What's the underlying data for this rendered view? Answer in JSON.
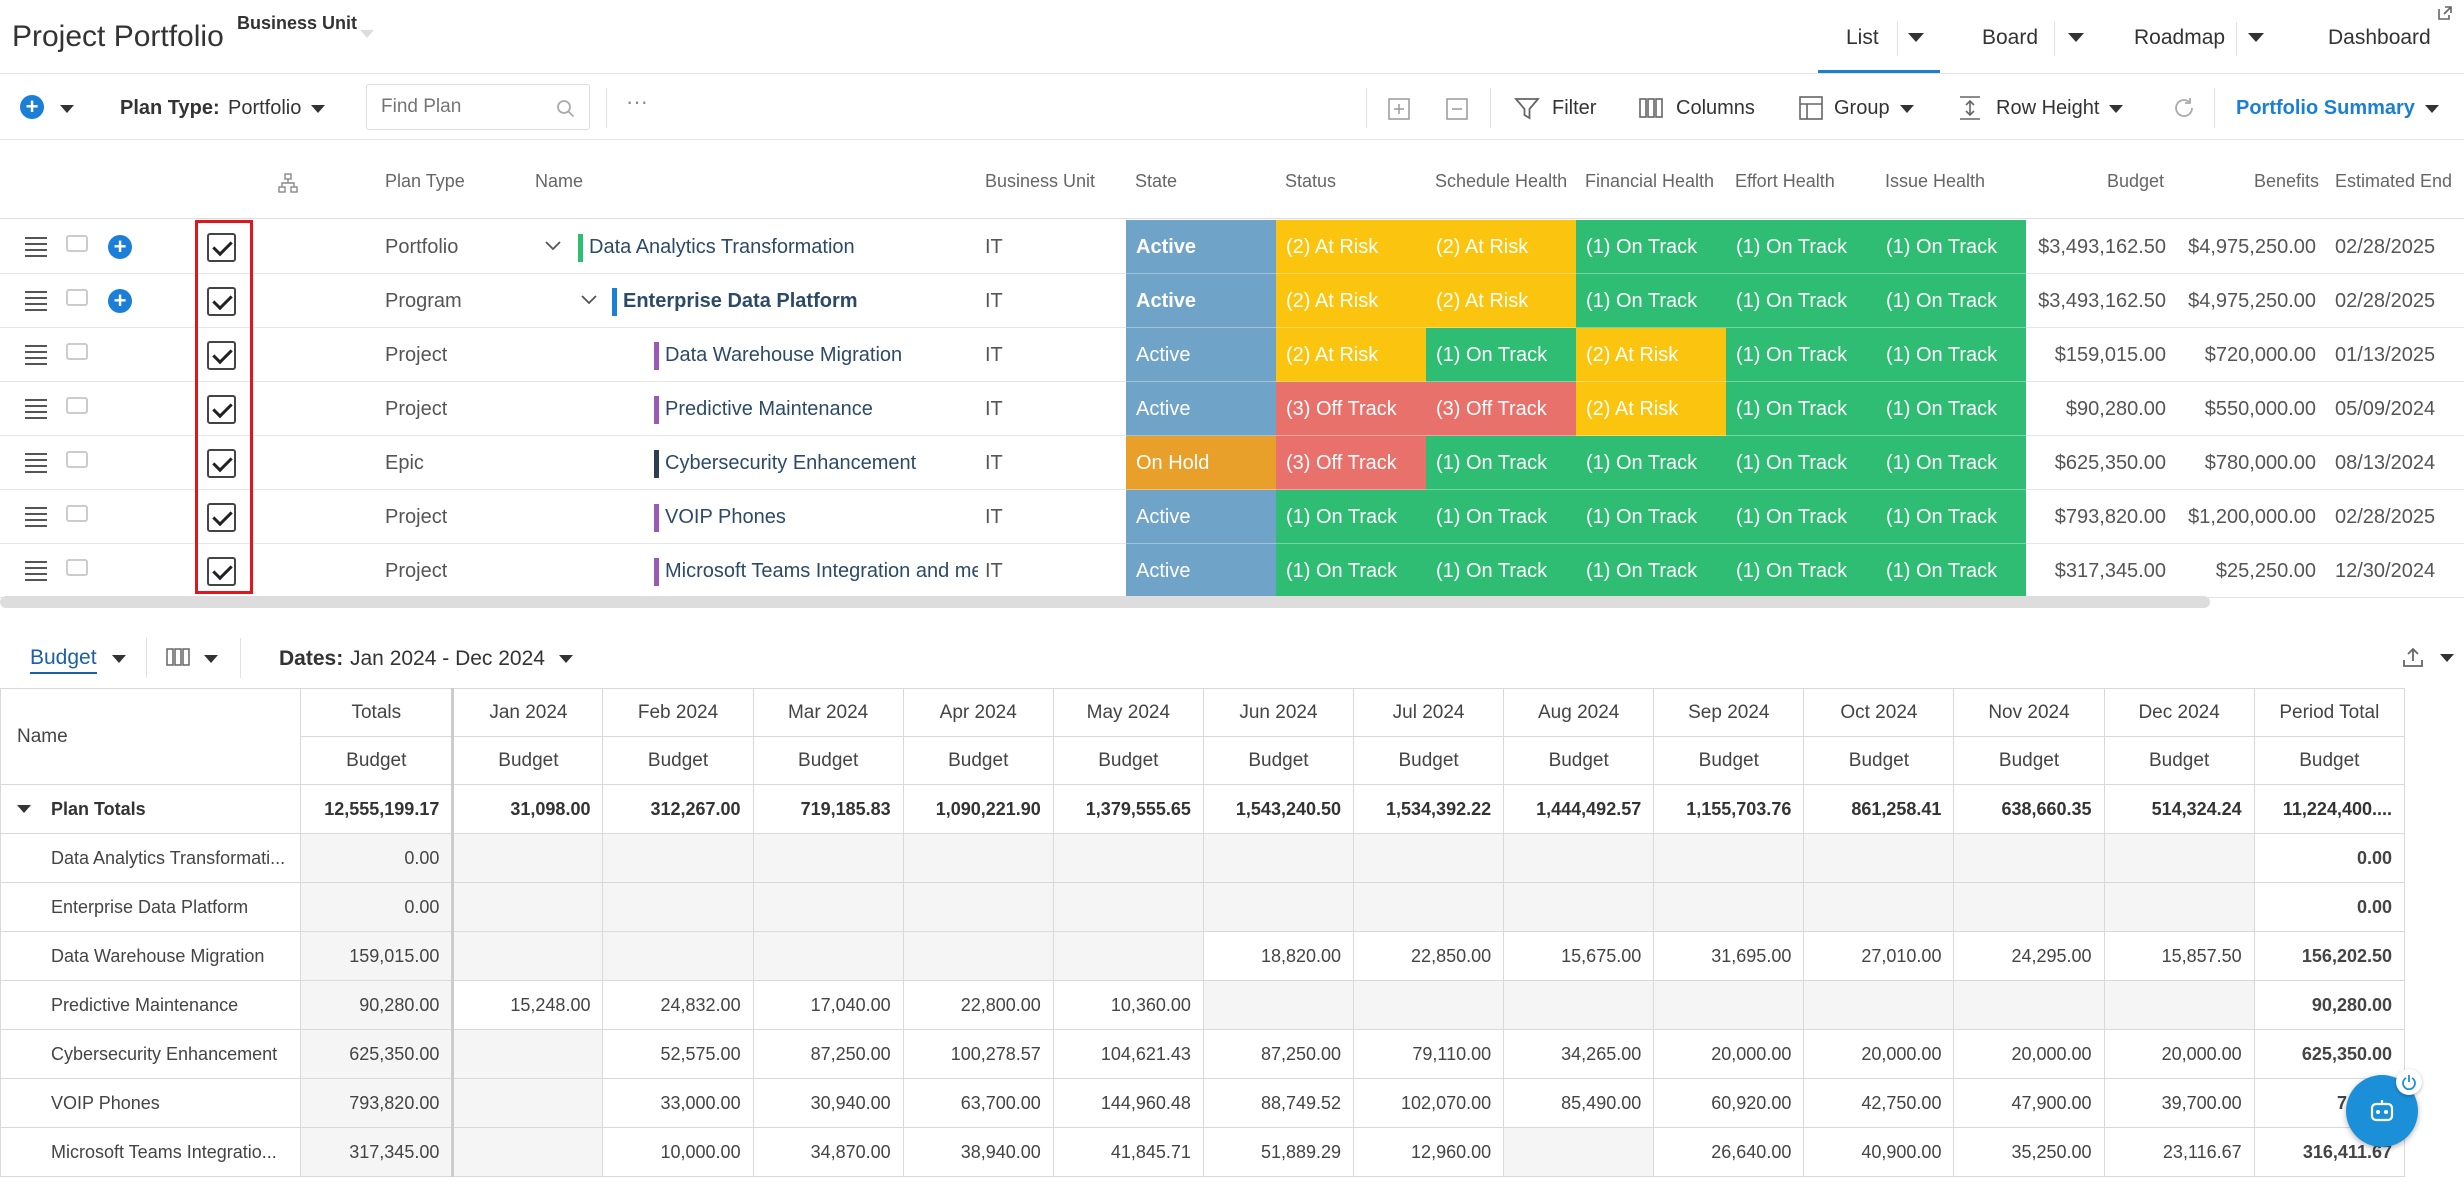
{
  "header": {
    "title": "Project Portfolio",
    "business_unit_label": "Business Unit",
    "views": [
      {
        "label": "List",
        "active": true
      },
      {
        "label": "Board"
      },
      {
        "label": "Roadmap"
      },
      {
        "label": "Dashboard"
      }
    ]
  },
  "toolbar": {
    "plan_type_label": "Plan Type:",
    "plan_type_value": "Portfolio",
    "find_placeholder": "Find Plan",
    "more": "···",
    "filter": "Filter",
    "columns": "Columns",
    "group": "Group",
    "row_height": "Row Height",
    "portfolio_summary": "Portfolio Summary"
  },
  "grid": {
    "columns": [
      "Plan Type",
      "Name",
      "Business Unit",
      "State",
      "Status",
      "Schedule Health",
      "Financial Health",
      "Effort Health",
      "Issue Health",
      "Budget",
      "Benefits",
      "Estimated End"
    ],
    "colors": {
      "active": "#6fa3c7",
      "on_hold": "#e8a02a",
      "at_risk": "#fbc40f",
      "off_track": "#e8716b",
      "on_track": "#2ebd72"
    },
    "rows": [
      {
        "type": "Portfolio",
        "name": "Data Analytics Transformation",
        "bu": "IT",
        "state": "Active",
        "status": "(2) At Risk",
        "schedule": "(2) At Risk",
        "financial": "(1) On Track",
        "effort": "(1) On Track",
        "issue": "(1) On Track",
        "budget": "$3,493,162.50",
        "benefits": "$4,975,250.00",
        "end": "02/28/2025",
        "bar": "#2ebd72"
      },
      {
        "type": "Program",
        "name": "Enterprise Data Platform",
        "bu": "IT",
        "state": "Active",
        "status": "(2) At Risk",
        "schedule": "(2) At Risk",
        "financial": "(1) On Track",
        "effort": "(1) On Track",
        "issue": "(1) On Track",
        "budget": "$3,493,162.50",
        "benefits": "$4,975,250.00",
        "end": "02/28/2025",
        "bar": "#1b7fd8"
      },
      {
        "type": "Project",
        "name": "Data Warehouse Migration",
        "bu": "IT",
        "state": "Active",
        "status": "(2) At Risk",
        "schedule": "(1) On Track",
        "financial": "(2) At Risk",
        "effort": "(1) On Track",
        "issue": "(1) On Track",
        "budget": "$159,015.00",
        "benefits": "$720,000.00",
        "end": "01/13/2025",
        "bar": "#9b59b6"
      },
      {
        "type": "Project",
        "name": "Predictive Maintenance",
        "bu": "IT",
        "state": "Active",
        "status": "(3) Off Track",
        "schedule": "(3) Off Track",
        "financial": "(2) At Risk",
        "effort": "(1) On Track",
        "issue": "(1) On Track",
        "budget": "$90,280.00",
        "benefits": "$550,000.00",
        "end": "05/09/2024",
        "bar": "#9b59b6"
      },
      {
        "type": "Epic",
        "name": "Cybersecurity Enhancement",
        "bu": "IT",
        "state": "On Hold",
        "status": "(3) Off Track",
        "schedule": "(1) On Track",
        "financial": "(1) On Track",
        "effort": "(1) On Track",
        "issue": "(1) On Track",
        "budget": "$625,350.00",
        "benefits": "$780,000.00",
        "end": "08/13/2024",
        "bar": "#2c3e50"
      },
      {
        "type": "Project",
        "name": "VOIP Phones",
        "bu": "IT",
        "state": "Active",
        "status": "(1) On Track",
        "schedule": "(1) On Track",
        "financial": "(1) On Track",
        "effort": "(1) On Track",
        "issue": "(1) On Track",
        "budget": "$793,820.00",
        "benefits": "$1,200,000.00",
        "end": "02/28/2025",
        "bar": "#9b59b6"
      },
      {
        "type": "Project",
        "name": "Microsoft Teams Integration and me",
        "bu": "IT",
        "state": "Active",
        "status": "(1) On Track",
        "schedule": "(1) On Track",
        "financial": "(1) On Track",
        "effort": "(1) On Track",
        "issue": "(1) On Track",
        "budget": "$317,345.00",
        "benefits": "$25,250.00",
        "end": "12/30/2024",
        "bar": "#9b59b6"
      }
    ]
  },
  "financials": {
    "tab": "Budget",
    "dates_label": "Dates:",
    "dates_value": "Jan 2024 - Dec 2024",
    "name_header": "Name",
    "totals_header": "Totals",
    "months": [
      "Jan 2024",
      "Feb 2024",
      "Mar 2024",
      "Apr 2024",
      "May 2024",
      "Jun 2024",
      "Jul 2024",
      "Aug 2024",
      "Sep 2024",
      "Oct 2024",
      "Nov 2024",
      "Dec 2024",
      "Period Total"
    ],
    "sub_header": "Budget",
    "rows": [
      {
        "name": "Plan Totals",
        "total": "12,555,199.17",
        "values": [
          "31,098.00",
          "312,267.00",
          "719,185.83",
          "1,090,221.90",
          "1,379,555.65",
          "1,543,240.50",
          "1,534,392.22",
          "1,444,492.57",
          "1,155,703.76",
          "861,258.41",
          "638,660.35",
          "514,324.24"
        ],
        "period": "11,224,400...."
      },
      {
        "name": "Data Analytics Transformati...",
        "total": "0.00",
        "values": [
          "",
          "",
          "",
          "",
          "",
          "",
          "",
          "",
          "",
          "",
          "",
          ""
        ],
        "period": "0.00"
      },
      {
        "name": "Enterprise Data Platform",
        "total": "0.00",
        "values": [
          "",
          "",
          "",
          "",
          "",
          "",
          "",
          "",
          "",
          "",
          "",
          ""
        ],
        "period": "0.00"
      },
      {
        "name": "Data Warehouse Migration",
        "total": "159,015.00",
        "values": [
          "",
          "",
          "",
          "",
          "",
          "18,820.00",
          "22,850.00",
          "15,675.00",
          "31,695.00",
          "27,010.00",
          "24,295.00",
          "15,857.50"
        ],
        "period": "156,202.50"
      },
      {
        "name": "Predictive Maintenance",
        "total": "90,280.00",
        "values": [
          "15,248.00",
          "24,832.00",
          "17,040.00",
          "22,800.00",
          "10,360.00",
          "",
          "",
          "",
          "",
          "",
          "",
          ""
        ],
        "period": "90,280.00"
      },
      {
        "name": "Cybersecurity Enhancement",
        "total": "625,350.00",
        "values": [
          "",
          "52,575.00",
          "87,250.00",
          "100,278.57",
          "104,621.43",
          "87,250.00",
          "79,110.00",
          "34,265.00",
          "20,000.00",
          "20,000.00",
          "20,000.00",
          "20,000.00"
        ],
        "period": "625,350.00"
      },
      {
        "name": "VOIP Phones",
        "total": "793,820.00",
        "values": [
          "",
          "33,000.00",
          "30,940.00",
          "63,700.00",
          "144,960.48",
          "88,749.52",
          "102,070.00",
          "85,490.00",
          "60,920.00",
          "42,750.00",
          "47,900.00",
          "39,700.00"
        ],
        "period": "740,18"
      },
      {
        "name": "Microsoft Teams Integratio...",
        "total": "317,345.00",
        "values": [
          "",
          "10,000.00",
          "34,870.00",
          "38,940.00",
          "41,845.71",
          "51,889.29",
          "12,960.00",
          "",
          "26,640.00",
          "40,900.00",
          "35,250.00",
          "23,116.67"
        ],
        "period": "316,411.67"
      }
    ]
  }
}
